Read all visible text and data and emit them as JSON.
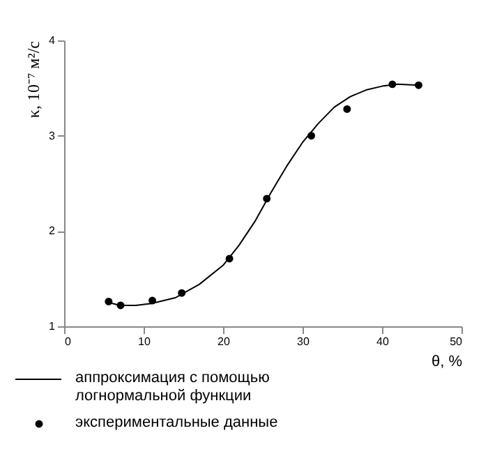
{
  "chart_data": {
    "type": "scatter",
    "xlabel": "θ, %",
    "ylabel": "κ, 10⁻⁷ м²/с",
    "xlim": [
      0,
      50
    ],
    "xticks": [
      0,
      10,
      20,
      30,
      40,
      50
    ],
    "ylim": [
      1,
      4
    ],
    "yticks": [
      1,
      2,
      3,
      4
    ],
    "grid": false,
    "legend": "bottom",
    "series": [
      {
        "name": "аппроксимация с помощью логнормальной функции",
        "type": "line",
        "color": "#000000",
        "marker": "none",
        "line_style": "solid",
        "x": [
          5.6,
          7,
          9,
          11,
          14,
          17,
          20,
          22,
          24,
          26,
          28,
          30,
          32,
          34,
          36,
          38,
          40,
          42,
          44.6
        ],
        "values": [
          1.25,
          1.22,
          1.22,
          1.24,
          1.3,
          1.44,
          1.64,
          1.85,
          2.1,
          2.4,
          2.68,
          2.93,
          3.13,
          3.3,
          3.41,
          3.48,
          3.52,
          3.54,
          3.53
        ]
      },
      {
        "name": "экспериментальные данные",
        "color": "#000000",
        "marker": "circle",
        "x": [
          5.6,
          7.1,
          11.1,
          14.8,
          20.8,
          25.5,
          31.1,
          35.6,
          41.3,
          44.6
        ],
        "values": [
          1.26,
          1.22,
          1.27,
          1.35,
          1.71,
          2.34,
          3.0,
          3.28,
          3.54,
          3.53
        ]
      }
    ]
  }
}
